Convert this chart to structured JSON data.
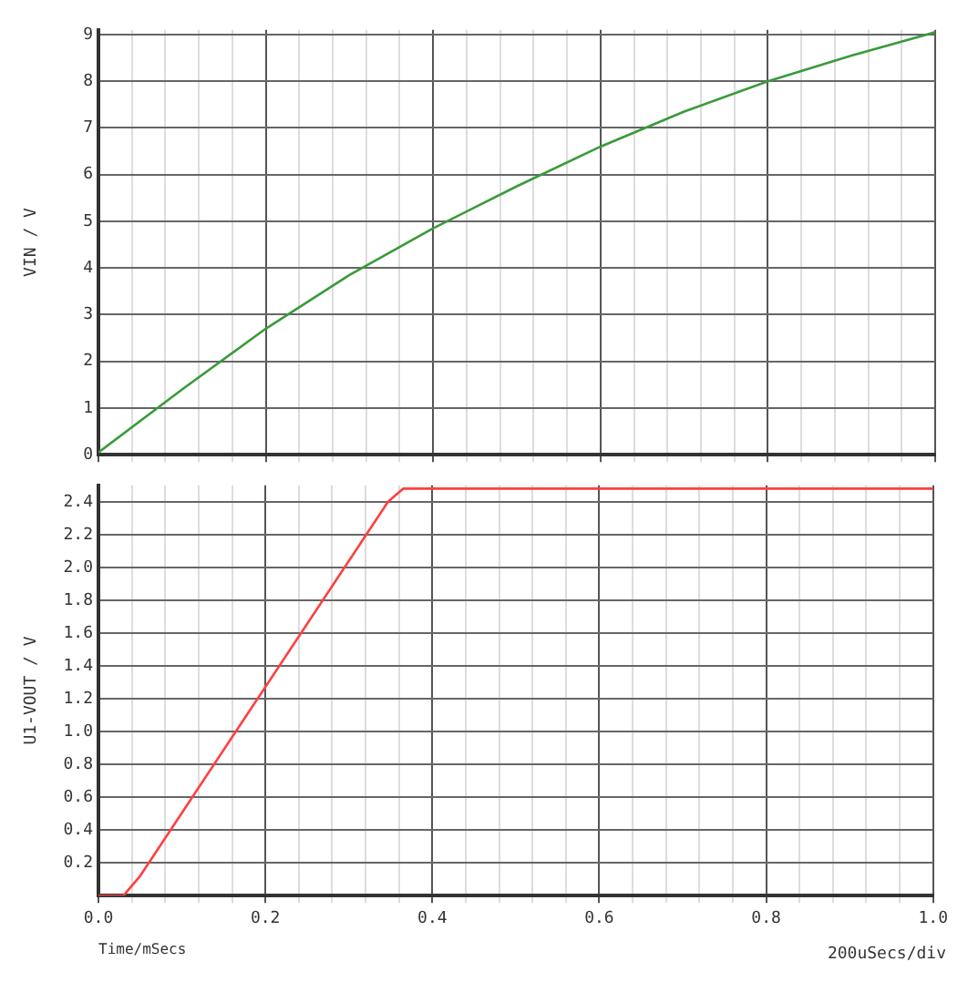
{
  "chart_data": [
    {
      "type": "line",
      "ylabel": "VIN / V",
      "x": [
        0,
        0.1,
        0.2,
        0.3,
        0.4,
        0.5,
        0.6,
        0.7,
        0.8,
        0.9,
        1.0
      ],
      "xlim": [
        0,
        1
      ],
      "xticks": [
        {
          "value": 0,
          "label": null
        },
        {
          "value": 0.04,
          "label": null
        },
        {
          "value": 0.08,
          "label": null
        },
        {
          "value": 0.12,
          "label": null
        },
        {
          "value": 0.16,
          "label": null
        },
        {
          "value": 0.2,
          "label": null
        },
        {
          "value": 0.24,
          "label": null
        },
        {
          "value": 0.28,
          "label": null
        },
        {
          "value": 0.32,
          "label": null
        },
        {
          "value": 0.36,
          "label": null
        },
        {
          "value": 0.4,
          "label": null
        },
        {
          "value": 0.44,
          "label": null
        },
        {
          "value": 0.48,
          "label": null
        },
        {
          "value": 0.52,
          "label": null
        },
        {
          "value": 0.56,
          "label": null
        },
        {
          "value": 0.6,
          "label": null
        },
        {
          "value": 0.64,
          "label": null
        },
        {
          "value": 0.68,
          "label": null
        },
        {
          "value": 0.72,
          "label": null
        },
        {
          "value": 0.76,
          "label": null
        },
        {
          "value": 0.8,
          "label": null
        },
        {
          "value": 0.84,
          "label": null
        },
        {
          "value": 0.88,
          "label": null
        },
        {
          "value": 0.92,
          "label": null
        },
        {
          "value": 0.96,
          "label": null
        },
        {
          "value": 1.0,
          "label": null
        }
      ],
      "ylim": [
        0,
        9.1
      ],
      "yticks": [
        0,
        1,
        2,
        3,
        4,
        5,
        6,
        7,
        8,
        9
      ],
      "grid": true,
      "tick_labels": "y",
      "legend": false,
      "series": [
        {
          "color": "#3a9a3a",
          "values": [
            0.05,
            1.4,
            2.7,
            3.85,
            4.85,
            5.75,
            6.6,
            7.35,
            8.0,
            8.55,
            9.05
          ]
        }
      ]
    },
    {
      "type": "line",
      "ylabel": "U1-VOUT / V",
      "xlabel": "Time/mSecs",
      "annotations": [
        "200uSecs/div"
      ],
      "x": [
        0,
        0.03,
        0.05,
        0.347,
        0.365,
        1.0
      ],
      "xlim": [
        0,
        1
      ],
      "xticks": [
        {
          "value": 0,
          "label": "0.0"
        },
        {
          "value": 0.04,
          "label": null
        },
        {
          "value": 0.08,
          "label": null
        },
        {
          "value": 0.12,
          "label": null
        },
        {
          "value": 0.16,
          "label": null
        },
        0.2,
        {
          "value": 0.24,
          "label": null
        },
        {
          "value": 0.28,
          "label": null
        },
        {
          "value": 0.32,
          "label": null
        },
        {
          "value": 0.36,
          "label": null
        },
        0.4,
        {
          "value": 0.44,
          "label": null
        },
        {
          "value": 0.48,
          "label": null
        },
        {
          "value": 0.52,
          "label": null
        },
        {
          "value": 0.56,
          "label": null
        },
        0.6,
        {
          "value": 0.64,
          "label": null
        },
        {
          "value": 0.68,
          "label": null
        },
        {
          "value": 0.72,
          "label": null
        },
        {
          "value": 0.76,
          "label": null
        },
        0.8,
        {
          "value": 0.84,
          "label": null
        },
        {
          "value": 0.88,
          "label": null
        },
        {
          "value": 0.92,
          "label": null
        },
        {
          "value": 0.96,
          "label": null
        },
        {
          "value": 1.0,
          "label": "1.0"
        }
      ],
      "ylim": [
        0,
        2.5
      ],
      "yticks": [
        {
          "value": 0.2,
          "label": "0.2"
        },
        {
          "value": 0.4,
          "label": "0.4"
        },
        {
          "value": 0.6,
          "label": "0.6"
        },
        {
          "value": 0.8,
          "label": "0.8"
        },
        {
          "value": 1.0,
          "label": "1.0"
        },
        {
          "value": 1.2,
          "label": "1.2"
        },
        {
          "value": 1.4,
          "label": "1.4"
        },
        {
          "value": 1.6,
          "label": "1.6"
        },
        {
          "value": 1.8,
          "label": "1.8"
        },
        {
          "value": 2.0,
          "label": "2.0"
        },
        {
          "value": 2.2,
          "label": "2.2"
        },
        {
          "value": 2.4,
          "label": "2.4"
        }
      ],
      "grid": true,
      "legend": false,
      "series": [
        {
          "color": "#ff4040",
          "values": [
            0,
            0,
            0.12,
            2.4,
            2.48,
            2.48
          ]
        }
      ]
    }
  ]
}
